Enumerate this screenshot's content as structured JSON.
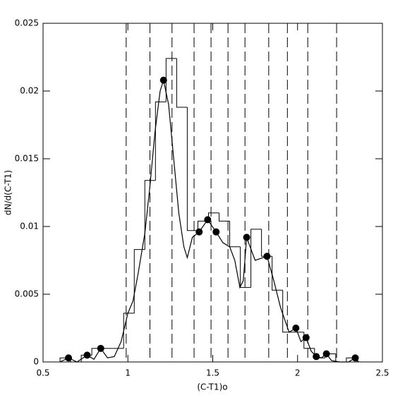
{
  "chart_data": {
    "type": "histogram",
    "xlabel": "(C-T1)o",
    "ylabel": "dN/d(C-T1)",
    "xlim": [
      0.5,
      2.5
    ],
    "ylim": [
      0,
      0.025
    ],
    "xticks": [
      0.5,
      1,
      1.5,
      2,
      2.5
    ],
    "yticks": [
      0,
      0.005,
      0.01,
      0.015,
      0.02,
      0.025
    ],
    "color": "#000000",
    "bins": [
      0.6,
      0.6625,
      0.725,
      0.7875,
      0.85,
      0.9125,
      0.975,
      1.0375,
      1.1,
      1.1625,
      1.225,
      1.2875,
      1.35,
      1.4125,
      1.475,
      1.5375,
      1.6,
      1.6625,
      1.725,
      1.7875,
      1.85,
      1.9125,
      1.975,
      2.0375,
      2.1,
      2.1625,
      2.225,
      2.2875,
      2.35
    ],
    "values": [
      0.0003,
      0,
      0.0005,
      0.001,
      0.001,
      0.001,
      0.0036,
      0.0083,
      0.0134,
      0.0192,
      0.0224,
      0.0188,
      0.0097,
      0.0104,
      0.011,
      0.0104,
      0.0085,
      0.0055,
      0.0098,
      0.0078,
      0.0053,
      0.0022,
      0.0022,
      0.001,
      0.0003,
      0.0006,
      0,
      0.0003
    ],
    "curve": {
      "x": [
        0.6,
        0.65,
        0.7,
        0.76,
        0.8,
        0.84,
        0.88,
        0.92,
        0.96,
        1.0,
        1.03,
        1.06,
        1.1,
        1.13,
        1.16,
        1.19,
        1.21,
        1.24,
        1.27,
        1.3,
        1.33,
        1.35,
        1.38,
        1.42,
        1.47,
        1.52,
        1.56,
        1.6,
        1.63,
        1.66,
        1.68,
        1.7,
        1.72,
        1.75,
        1.82,
        1.86,
        1.9,
        1.95,
        1.99,
        2.02,
        2.05,
        2.08,
        2.11,
        2.14,
        2.17,
        2.2,
        2.25,
        2.3,
        2.34,
        2.36
      ],
      "y": [
        0,
        0.0003,
        0,
        0.0005,
        0.0002,
        0.001,
        0.0003,
        0.0004,
        0.0015,
        0.0036,
        0.0045,
        0.0065,
        0.0095,
        0.013,
        0.017,
        0.02,
        0.0208,
        0.019,
        0.015,
        0.011,
        0.0085,
        0.0077,
        0.0092,
        0.0096,
        0.0105,
        0.0096,
        0.0088,
        0.0085,
        0.0075,
        0.0055,
        0.006,
        0.0092,
        0.0085,
        0.0075,
        0.0078,
        0.006,
        0.004,
        0.0022,
        0.0025,
        0.0015,
        0.0018,
        0.0008,
        0.0004,
        0.0003,
        0.0006,
        0.0001,
        0,
        0,
        0.0003,
        0
      ]
    },
    "points": {
      "x": [
        0.65,
        0.76,
        0.84,
        1.21,
        1.42,
        1.47,
        1.52,
        1.7,
        1.82,
        1.99,
        2.05,
        2.11,
        2.17,
        2.34
      ],
      "y": [
        0.0003,
        0.0005,
        0.001,
        0.0208,
        0.0096,
        0.0105,
        0.0096,
        0.0092,
        0.0078,
        0.0025,
        0.0018,
        0.0004,
        0.0006,
        0.0003
      ]
    },
    "vlines": [
      0.99,
      1.13,
      1.26,
      1.39,
      1.49,
      1.59,
      1.69,
      1.83,
      1.94,
      2.06,
      2.23
    ]
  }
}
